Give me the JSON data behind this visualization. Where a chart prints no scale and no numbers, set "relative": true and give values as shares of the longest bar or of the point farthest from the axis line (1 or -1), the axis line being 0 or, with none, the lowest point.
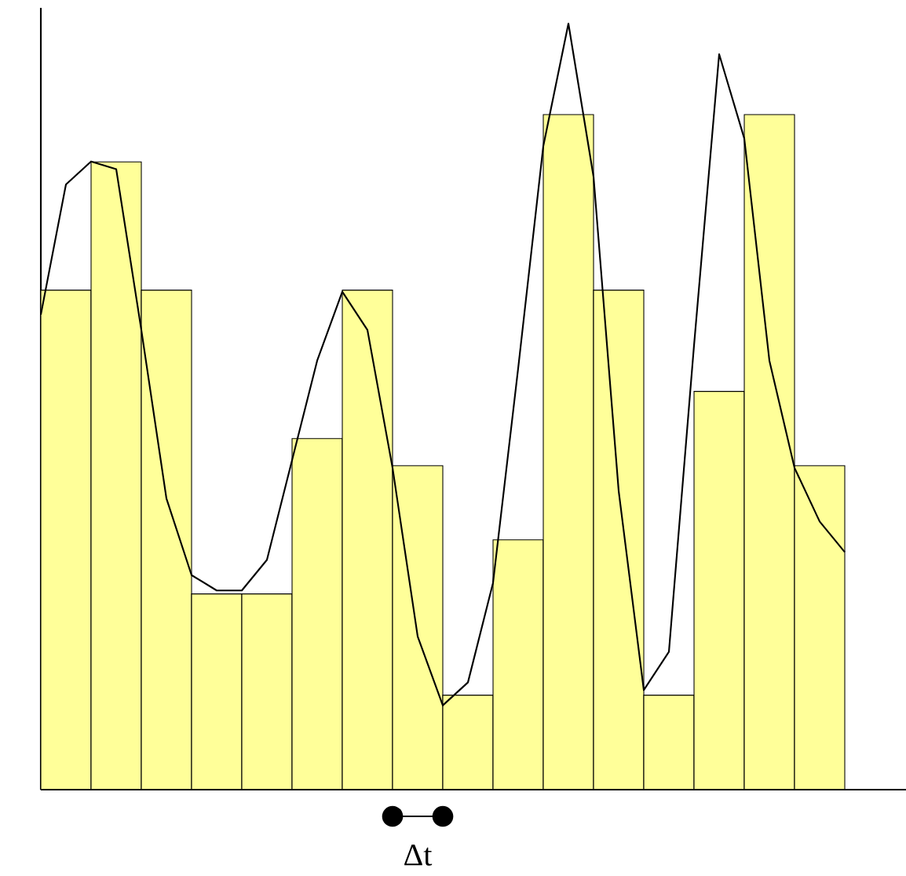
{
  "chart_data": [
    {
      "type": "bar",
      "relative": true,
      "categories": [
        null,
        null,
        null,
        null,
        null,
        null,
        null,
        null,
        null,
        null,
        null,
        null,
        null,
        null,
        null,
        null
      ],
      "series": [
        {
          "color": "#ffff99",
          "values": [
            0.74,
            0.93,
            0.74,
            0.29,
            0.29,
            0.52,
            0.74,
            0.48,
            0.14,
            0.37,
            1,
            0.74,
            0.14,
            0.59,
            1,
            0.48
          ]
        }
      ],
      "annotations": [
        "Δt"
      ]
    },
    {
      "type": "line",
      "relative": true,
      "categories": [
        null,
        null,
        null,
        null,
        null,
        null,
        null,
        null,
        null,
        null,
        null,
        null,
        null,
        null,
        null,
        null,
        null,
        null,
        null,
        null,
        null,
        null,
        null,
        null,
        null,
        null,
        null,
        null,
        null,
        null,
        null,
        null,
        null
      ],
      "series": [
        {
          "color": "#000000",
          "values": [
            0.62,
            0.79,
            0.82,
            0.81,
            0.6,
            0.38,
            0.28,
            0.26,
            0.26,
            0.3,
            0.43,
            0.56,
            0.65,
            0.6,
            0.42,
            0.2,
            0.11,
            0.14,
            0.27,
            0.55,
            0.84,
            1.0,
            0.8,
            0.39,
            0.13,
            0.18,
            0.58,
            0.96,
            0.85,
            0.56,
            0.42,
            0.35,
            0.31
          ]
        }
      ]
    }
  ]
}
